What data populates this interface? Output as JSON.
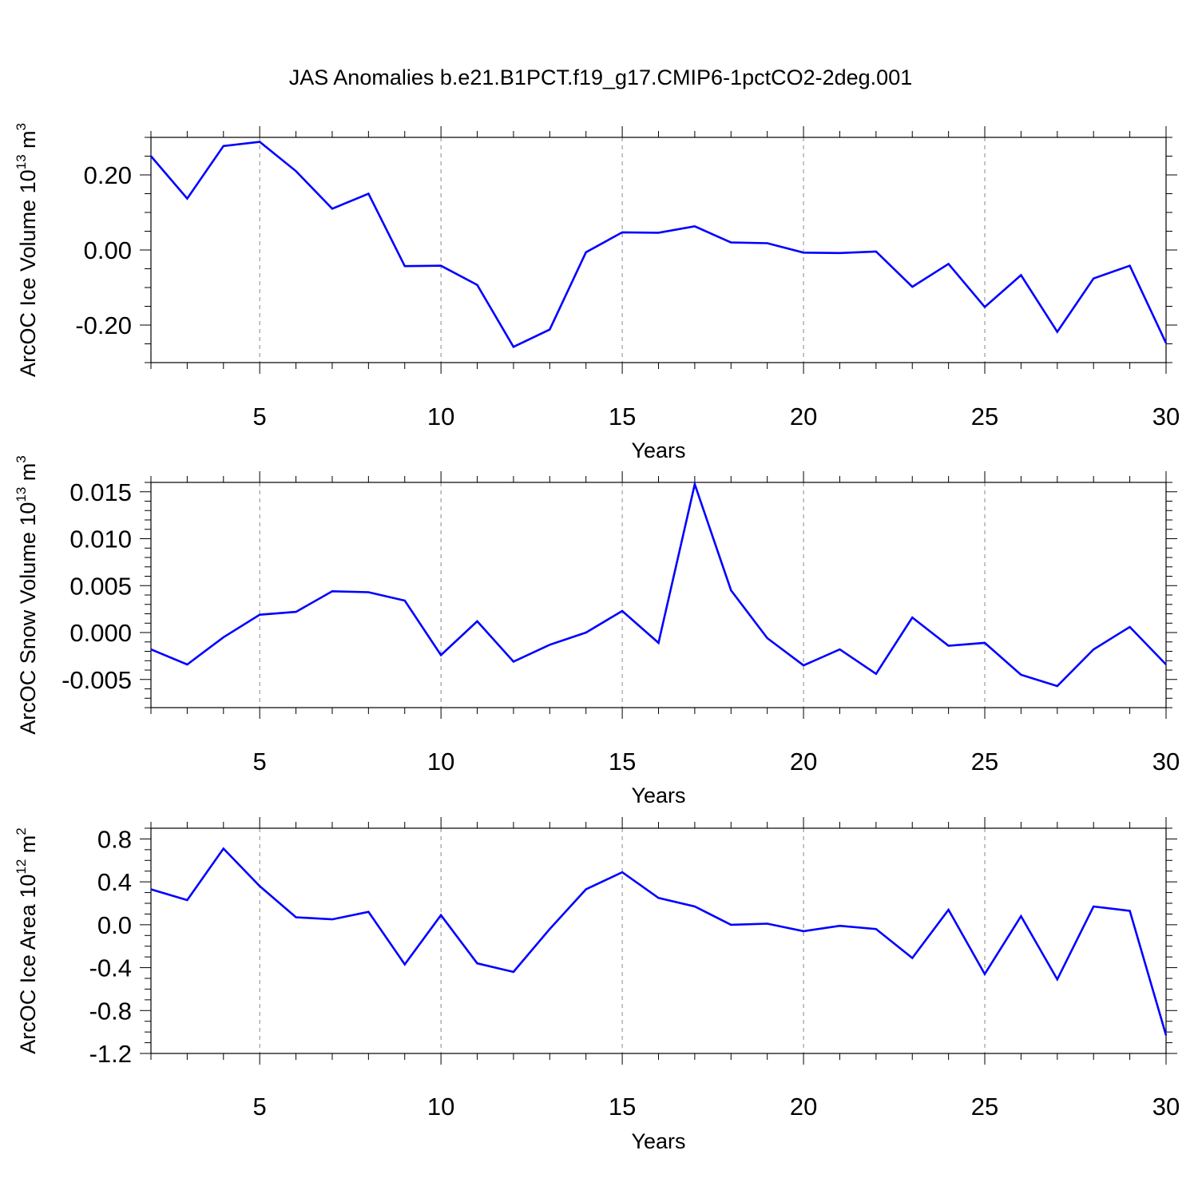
{
  "chart_data": {
    "title": "JAS Anomalies b.e21.B1PCT.f19_g17.CMIP6-1pctCO2-2deg.001",
    "panels": [
      {
        "type": "line",
        "ylabel": {
          "main": "ArcOC Ice Volume 10",
          "sup": "13",
          "unit": " m",
          "unit_sup": "3"
        },
        "xlabel": "Years",
        "xlim": [
          2,
          30
        ],
        "ylim": [
          -0.3,
          0.3
        ],
        "yticks": [
          -0.2,
          0.0,
          0.2
        ],
        "ytick_labels": [
          "-0.20",
          "0.00",
          "0.20"
        ],
        "xticks": [
          5,
          10,
          15,
          20,
          25,
          30
        ],
        "xtick_labels": [
          "5",
          "10",
          "15",
          "20",
          "25",
          "30"
        ],
        "grid": "vertical-dashed",
        "series": [
          {
            "name": "ArcOC Ice Volume",
            "color": "#0000ff",
            "x": [
              2,
              3,
              4,
              5,
              6,
              7,
              8,
              9,
              10,
              11,
              12,
              13,
              14,
              15,
              16,
              17,
              18,
              19,
              20,
              21,
              22,
              23,
              24,
              25,
              26,
              27,
              28,
              29,
              30
            ],
            "y": [
              0.25,
              0.137,
              0.277,
              0.288,
              0.21,
              0.11,
              0.15,
              -0.043,
              -0.042,
              -0.093,
              -0.258,
              -0.212,
              -0.006,
              0.047,
              0.046,
              0.063,
              0.02,
              0.018,
              -0.007,
              -0.008,
              -0.004,
              -0.098,
              -0.037,
              -0.152,
              -0.067,
              -0.218,
              -0.076,
              -0.042,
              -0.248
            ]
          }
        ]
      },
      {
        "type": "line",
        "ylabel": {
          "main": "ArcOC Snow Volume 10",
          "sup": "13",
          "unit": " m",
          "unit_sup": "3"
        },
        "xlabel": "Years",
        "xlim": [
          2,
          30
        ],
        "ylim": [
          -0.008,
          0.016
        ],
        "yticks": [
          -0.005,
          0.0,
          0.005,
          0.01,
          0.015
        ],
        "ytick_labels": [
          "-0.005",
          "0.000",
          "0.005",
          "0.010",
          "0.015"
        ],
        "xticks": [
          5,
          10,
          15,
          20,
          25,
          30
        ],
        "xtick_labels": [
          "5",
          "10",
          "15",
          "20",
          "25",
          "30"
        ],
        "grid": "vertical-dashed",
        "series": [
          {
            "name": "ArcOC Snow Volume",
            "color": "#0000ff",
            "x": [
              2,
              3,
              4,
              5,
              6,
              7,
              8,
              9,
              10,
              11,
              12,
              13,
              14,
              15,
              16,
              17,
              18,
              19,
              20,
              21,
              22,
              23,
              24,
              25,
              26,
              27,
              28,
              29,
              30
            ],
            "y": [
              -0.0018,
              -0.0034,
              -0.0005,
              0.0019,
              0.0022,
              0.0044,
              0.0043,
              0.0034,
              -0.0024,
              0.0012,
              -0.0031,
              -0.0013,
              0.0,
              0.0023,
              -0.0011,
              0.0158,
              0.0045,
              -0.0006,
              -0.0035,
              -0.0018,
              -0.0044,
              0.0016,
              -0.0014,
              -0.0011,
              -0.0045,
              -0.0057,
              -0.0018,
              0.0006,
              -0.0034
            ]
          }
        ]
      },
      {
        "type": "line",
        "ylabel": {
          "main": "ArcOC Ice Area 10",
          "sup": "12",
          "unit": " m",
          "unit_sup": "2"
        },
        "xlabel": "Years",
        "xlim": [
          2,
          30
        ],
        "ylim": [
          -1.2,
          0.9
        ],
        "yticks": [
          -1.2,
          -0.8,
          -0.4,
          0.0,
          0.4,
          0.8
        ],
        "ytick_labels": [
          "-1.2",
          "-0.8",
          "-0.4",
          "0.0",
          "0.4",
          "0.8"
        ],
        "xticks": [
          5,
          10,
          15,
          20,
          25,
          30
        ],
        "xtick_labels": [
          "5",
          "10",
          "15",
          "20",
          "25",
          "30"
        ],
        "grid": "vertical-dashed",
        "series": [
          {
            "name": "ArcOC Ice Area",
            "color": "#0000ff",
            "x": [
              2,
              3,
              4,
              5,
              6,
              7,
              8,
              9,
              10,
              11,
              12,
              13,
              14,
              15,
              16,
              17,
              18,
              19,
              20,
              21,
              22,
              23,
              24,
              25,
              26,
              27,
              28,
              29,
              30
            ],
            "y": [
              0.33,
              0.23,
              0.71,
              0.36,
              0.07,
              0.05,
              0.12,
              -0.37,
              0.09,
              -0.36,
              -0.44,
              -0.04,
              0.33,
              0.49,
              0.25,
              0.17,
              0.0,
              0.01,
              -0.06,
              -0.01,
              -0.04,
              -0.31,
              0.14,
              -0.46,
              0.08,
              -0.51,
              0.17,
              0.13,
              -1.03
            ]
          }
        ]
      }
    ]
  }
}
